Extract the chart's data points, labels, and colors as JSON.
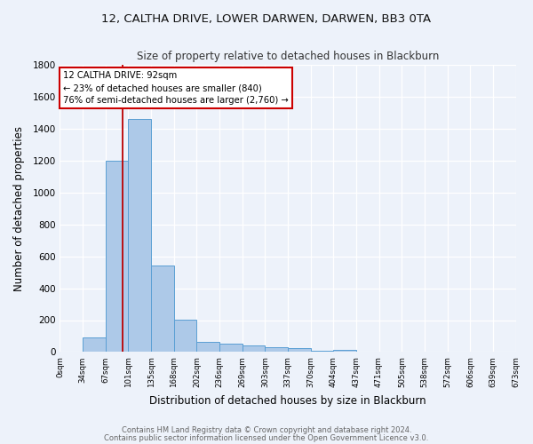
{
  "title": "12, CALTHA DRIVE, LOWER DARWEN, DARWEN, BB3 0TA",
  "subtitle": "Size of property relative to detached houses in Blackburn",
  "xlabel": "Distribution of detached houses by size in Blackburn",
  "ylabel": "Number of detached properties",
  "bar_edges": [
    0,
    34,
    67,
    101,
    135,
    168,
    202,
    236,
    269,
    303,
    337,
    370,
    404,
    437,
    471,
    505,
    538,
    572,
    606,
    639,
    673
  ],
  "bar_heights": [
    0,
    90,
    1200,
    1460,
    540,
    205,
    65,
    50,
    40,
    28,
    22,
    8,
    15,
    0,
    0,
    0,
    0,
    0,
    0,
    0
  ],
  "bar_color": "#adc9e8",
  "bar_edge_color": "#5a9fd4",
  "property_size": 92,
  "vline_color": "#bb0000",
  "annotation_title": "12 CALTHA DRIVE: 92sqm",
  "annotation_line1": "← 23% of detached houses are smaller (840)",
  "annotation_line2": "76% of semi-detached houses are larger (2,760) →",
  "annotation_box_color": "#ffffff",
  "annotation_box_edge": "#cc0000",
  "background_color": "#edf2fa",
  "grid_color": "#ffffff",
  "ylim": [
    0,
    1800
  ],
  "footer1": "Contains HM Land Registry data © Crown copyright and database right 2024.",
  "footer2": "Contains public sector information licensed under the Open Government Licence v3.0."
}
